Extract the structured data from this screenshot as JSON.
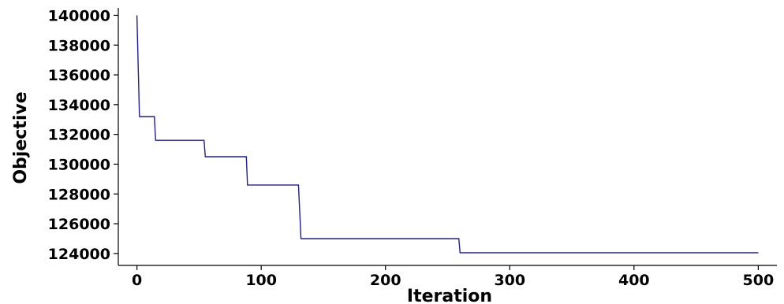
{
  "chart_data": {
    "type": "line",
    "title": "",
    "xlabel": "Iteration",
    "ylabel": "Objective",
    "xlim": [
      -15,
      515
    ],
    "ylim": [
      123200,
      140500
    ],
    "x_ticks": [
      0,
      100,
      200,
      300,
      400,
      500
    ],
    "y_ticks": [
      124000,
      126000,
      128000,
      130000,
      132000,
      134000,
      136000,
      138000,
      140000
    ],
    "grid": false,
    "legend": "none",
    "line_color": "#1f1f8f",
    "series": [
      {
        "step": "post",
        "points": [
          [
            0,
            140000
          ],
          [
            2,
            133200
          ],
          [
            14,
            133200
          ],
          [
            15,
            131600
          ],
          [
            54,
            131600
          ],
          [
            55,
            130500
          ],
          [
            88,
            130500
          ],
          [
            89,
            128600
          ],
          [
            130,
            128600
          ],
          [
            132,
            125000
          ],
          [
            259,
            125000
          ],
          [
            260,
            124050
          ],
          [
            500,
            124050
          ]
        ]
      }
    ]
  }
}
